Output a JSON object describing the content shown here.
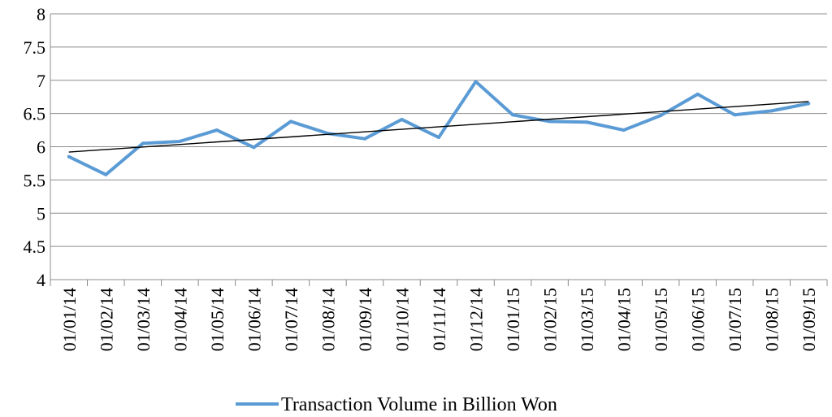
{
  "chart_data": {
    "type": "line",
    "title": "",
    "xlabel": "",
    "ylabel": "",
    "ylim": [
      4,
      8
    ],
    "yticks": [
      "4",
      "4.5",
      "5",
      "5.5",
      "6",
      "6.5",
      "7",
      "7.5",
      "8"
    ],
    "categories": [
      "01/01/14",
      "01/02/14",
      "01/03/14",
      "01/04/14",
      "01/05/14",
      "01/06/14",
      "01/07/14",
      "01/08/14",
      "01/09/14",
      "01/10/14",
      "01/11/14",
      "01/12/14",
      "01/01/15",
      "01/02/15",
      "01/03/15",
      "01/04/15",
      "01/05/15",
      "01/06/15",
      "01/07/15",
      "01/08/15",
      "01/09/15"
    ],
    "series": [
      {
        "name": "Transaction Volume in Billion Won",
        "color": "#5b9bd5",
        "values": [
          5.85,
          5.58,
          6.05,
          6.08,
          6.25,
          5.99,
          6.38,
          6.2,
          6.12,
          6.41,
          6.14,
          6.98,
          6.48,
          6.38,
          6.37,
          6.25,
          6.47,
          6.79,
          6.48,
          6.54,
          6.65
        ]
      }
    ],
    "trendline": {
      "color": "#000000",
      "start": 5.92,
      "end": 6.68
    },
    "grid": true,
    "legend": "bottom"
  }
}
